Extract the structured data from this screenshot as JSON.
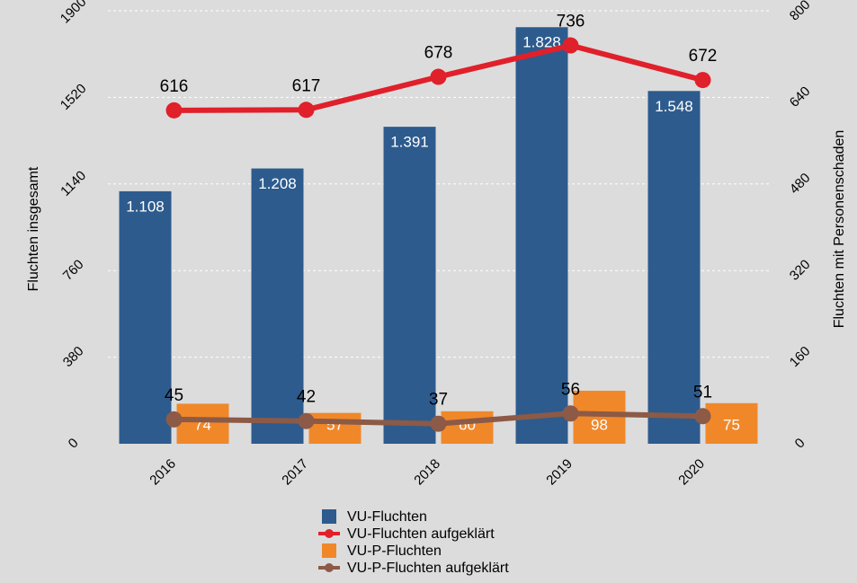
{
  "chart_data": {
    "type": "bar",
    "categories": [
      "2016",
      "2017",
      "2018",
      "2019",
      "2020"
    ],
    "ylabel": "Fluchten insgesamt",
    "y2label": "Fluchten mit Personenschaden",
    "ylim": [
      0,
      1900
    ],
    "yticks": [
      0,
      380,
      760,
      1140,
      1520,
      1900
    ],
    "y2lim": [
      0,
      800
    ],
    "y2ticks": [
      0,
      160,
      320,
      480,
      640,
      800
    ],
    "grid": true,
    "legend": "bottom",
    "series": [
      {
        "name": "VU-Fluchten",
        "type": "bar",
        "color": "#2d5b8e",
        "axis": "y",
        "values": [
          1108,
          1208,
          1391,
          1828,
          1548
        ],
        "value_labels": [
          "1.108",
          "1.208",
          "1.391",
          "1.828",
          "1.548"
        ]
      },
      {
        "name": "VU-Fluchten aufgeklärt",
        "type": "line",
        "color": "#e0202a",
        "axis": "y2",
        "values": [
          616,
          617,
          678,
          736,
          672
        ]
      },
      {
        "name": "VU-P-Fluchten",
        "type": "bar",
        "color": "#f0882a",
        "axis": "y2",
        "values": [
          74,
          57,
          60,
          98,
          75
        ]
      },
      {
        "name": "VU-P-Fluchten aufgeklärt",
        "type": "line",
        "color": "#8c5a46",
        "axis": "y2",
        "values": [
          45,
          42,
          37,
          56,
          51
        ]
      }
    ]
  }
}
